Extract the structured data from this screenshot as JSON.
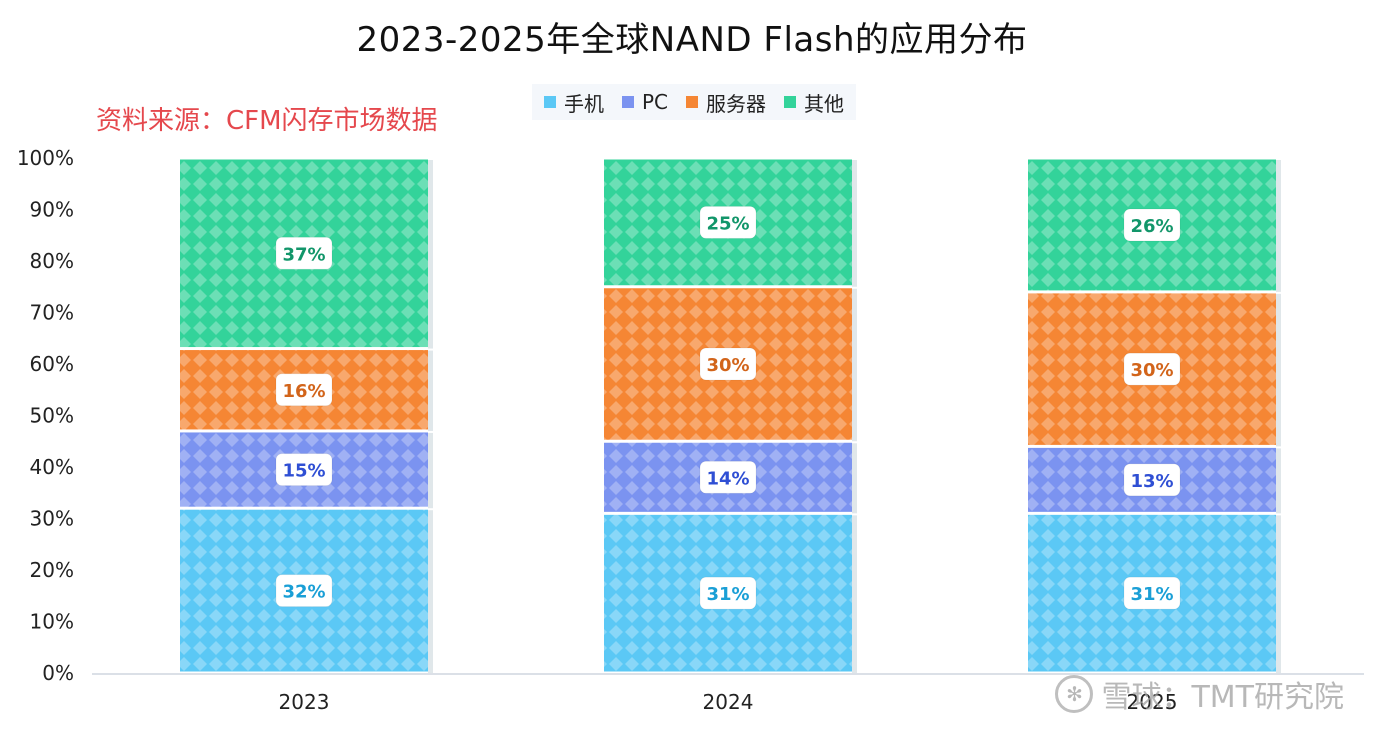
{
  "title": "2023-2025年全球NAND Flash的应用分布",
  "source_note": "资料来源：CFM闪存市场数据",
  "watermark": "雪球：TMT研究院",
  "chart_data": {
    "type": "bar",
    "stacked": true,
    "categories": [
      "2023",
      "2024",
      "2025"
    ],
    "series": [
      {
        "name": "手机",
        "values": [
          32,
          31,
          31
        ],
        "labels": [
          "32%",
          "31%",
          "31%"
        ],
        "color": "#5bc8f5",
        "label_color": "#1a9fd6"
      },
      {
        "name": "PC",
        "values": [
          15,
          14,
          13
        ],
        "labels": [
          "15%",
          "14%",
          "13%"
        ],
        "color": "#7b93f0",
        "label_color": "#2f4fd4"
      },
      {
        "name": "服务器",
        "values": [
          16,
          30,
          30
        ],
        "labels": [
          "16%",
          "30%",
          "30%"
        ],
        "color": "#f58634",
        "label_color": "#d2641a"
      },
      {
        "name": "其他",
        "values": [
          37,
          25,
          26
        ],
        "labels": [
          "37%",
          "25%",
          "26%"
        ],
        "color": "#33d39a",
        "label_color": "#12966a"
      }
    ],
    "yticks": [
      "0%",
      "10%",
      "20%",
      "30%",
      "40%",
      "50%",
      "60%",
      "70%",
      "80%",
      "90%",
      "100%"
    ],
    "ylim": [
      0,
      100
    ],
    "legend_position": "top",
    "grid": false
  }
}
